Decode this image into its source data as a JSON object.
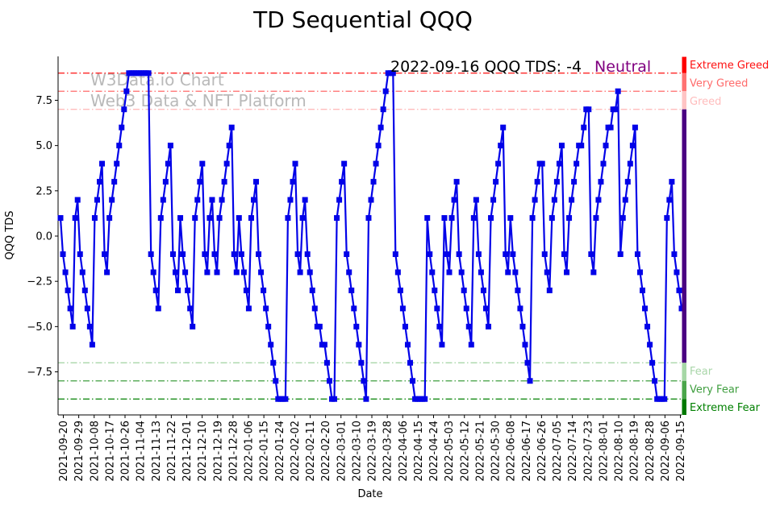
{
  "page_title": "TD Sequential QQQ",
  "watermark": {
    "line1": "W3Data.io Chart",
    "line2": "Web3 Data & NFT Platform",
    "color": "#b9b9b9"
  },
  "annotation": {
    "text": "2022-09-16 QQQ TDS: -4",
    "status": "Neutral",
    "status_color": "#800080"
  },
  "chart_data": {
    "type": "line",
    "title": "TD Sequential QQQ",
    "xlabel": "Date",
    "ylabel": "QQQ TDS",
    "ylim": [
      -9.9,
      9.9
    ],
    "grid": false,
    "legend": "none",
    "line_color": "#0202e8",
    "marker": "square",
    "ytick_values": [
      7.5,
      5.0,
      2.5,
      0.0,
      -2.5,
      -5.0,
      -7.5
    ],
    "ytick_labels": [
      "7.5",
      "5.0",
      "2.5",
      "0.0",
      "−2.5",
      "−5.0",
      "−7.5"
    ],
    "x_tick_labels": [
      "2021-09-20",
      "2021-09-29",
      "2021-10-08",
      "2021-10-17",
      "2021-10-26",
      "2021-11-04",
      "2021-11-13",
      "2021-11-22",
      "2021-12-01",
      "2021-12-10",
      "2021-12-19",
      "2021-12-28",
      "2022-01-06",
      "2022-01-15",
      "2022-01-24",
      "2022-02-02",
      "2022-02-11",
      "2022-02-20",
      "2022-03-01",
      "2022-03-10",
      "2022-03-19",
      "2022-03-28",
      "2022-04-06",
      "2022-04-15",
      "2022-04-24",
      "2022-05-03",
      "2022-05-12",
      "2022-05-21",
      "2022-05-30",
      "2022-06-08",
      "2022-06-17",
      "2022-06-26",
      "2022-07-05",
      "2022-07-14",
      "2022-07-23",
      "2022-08-01",
      "2022-08-10",
      "2022-08-19",
      "2022-08-28",
      "2022-09-06",
      "2022-09-15"
    ],
    "series_name": "QQQ TDS",
    "x_start": "2021-09-20",
    "x_end": "2022-09-16",
    "last_value": -4,
    "values": [
      1,
      -1,
      -2,
      -3,
      -4,
      -5,
      1,
      2,
      -1,
      -2,
      -3,
      -4,
      -5,
      -6,
      1,
      2,
      3,
      4,
      -1,
      -2,
      1,
      2,
      3,
      4,
      5,
      6,
      7,
      8,
      9,
      9,
      9,
      9,
      9,
      9,
      9,
      9,
      9,
      -1,
      -2,
      -3,
      -4,
      1,
      2,
      3,
      4,
      5,
      -1,
      -2,
      -3,
      1,
      -1,
      -2,
      -3,
      -4,
      -5,
      1,
      2,
      3,
      4,
      -1,
      -2,
      1,
      2,
      -1,
      -2,
      1,
      2,
      3,
      4,
      5,
      6,
      -1,
      -2,
      1,
      -1,
      -2,
      -3,
      -4,
      1,
      2,
      3,
      -1,
      -2,
      -3,
      -4,
      -5,
      -6,
      -7,
      -8,
      -9,
      -9,
      -9,
      -9,
      1,
      2,
      3,
      4,
      -1,
      -2,
      1,
      2,
      -1,
      -2,
      -3,
      -4,
      -5,
      -5,
      -6,
      -6,
      -7,
      -8,
      -9,
      -9,
      1,
      2,
      3,
      4,
      -1,
      -2,
      -3,
      -4,
      -5,
      -6,
      -7,
      -8,
      -9,
      1,
      2,
      3,
      4,
      5,
      6,
      7,
      8,
      9,
      9,
      9,
      -1,
      -2,
      -3,
      -4,
      -5,
      -6,
      -7,
      -8,
      -9,
      -9,
      -9,
      -9,
      -9,
      1,
      -1,
      -2,
      -3,
      -4,
      -5,
      -6,
      1,
      -1,
      -2,
      1,
      2,
      3,
      -1,
      -2,
      -3,
      -4,
      -5,
      -6,
      1,
      2,
      -1,
      -2,
      -3,
      -4,
      -5,
      1,
      2,
      3,
      4,
      5,
      6,
      -1,
      -2,
      1,
      -1,
      -2,
      -3,
      -4,
      -5,
      -6,
      -7,
      -8,
      1,
      2,
      3,
      4,
      4,
      -1,
      -2,
      -3,
      1,
      2,
      3,
      4,
      5,
      -1,
      -2,
      1,
      2,
      3,
      4,
      5,
      5,
      6,
      7,
      7,
      -1,
      -2,
      1,
      2,
      3,
      4,
      5,
      6,
      6,
      7,
      7,
      8,
      -1,
      1,
      2,
      3,
      4,
      5,
      6,
      -1,
      -2,
      -3,
      -4,
      -5,
      -6,
      -7,
      -8,
      -9,
      -9,
      -9,
      -9,
      1,
      2,
      3,
      -1,
      -2,
      -3,
      -4
    ],
    "thresholds": [
      {
        "label": "Extreme Greed",
        "value": 9,
        "line_color": "#fe1010",
        "label_color": "#fe1010"
      },
      {
        "label": "Very Greed",
        "value": 8,
        "line_color": "#ff6b6b",
        "label_color": "#ff6b6b"
      },
      {
        "label": "Greed",
        "value": 7,
        "line_color": "#ffbcbc",
        "label_color": "#ffbcbc"
      },
      {
        "label": "Fear",
        "value": -7,
        "line_color": "#a9d6a9",
        "label_color": "#a9d6a9"
      },
      {
        "label": "Very Fear",
        "value": -8,
        "line_color": "#3f9e3f",
        "label_color": "#3f9e3f"
      },
      {
        "label": "Extreme Fear",
        "value": -9,
        "line_color": "#008000",
        "label_color": "#008000"
      }
    ],
    "right_strip": [
      {
        "zone": "extreme-greed-top",
        "from": 9.9,
        "to": 9,
        "color": "#fe0000"
      },
      {
        "zone": "very-greed",
        "from": 9,
        "to": 8,
        "color": "#ff7272"
      },
      {
        "zone": "greed",
        "from": 8,
        "to": 7,
        "color": "#ffc4c4"
      },
      {
        "zone": "neutral",
        "from": 7,
        "to": -7,
        "color": "#4B0082"
      },
      {
        "zone": "fear",
        "from": -7,
        "to": -8,
        "color": "#a6d7a6"
      },
      {
        "zone": "very-fear",
        "from": -8,
        "to": -9,
        "color": "#4aa54a"
      },
      {
        "zone": "extreme-fear",
        "from": -9,
        "to": -9.9,
        "color": "#007800"
      }
    ]
  }
}
